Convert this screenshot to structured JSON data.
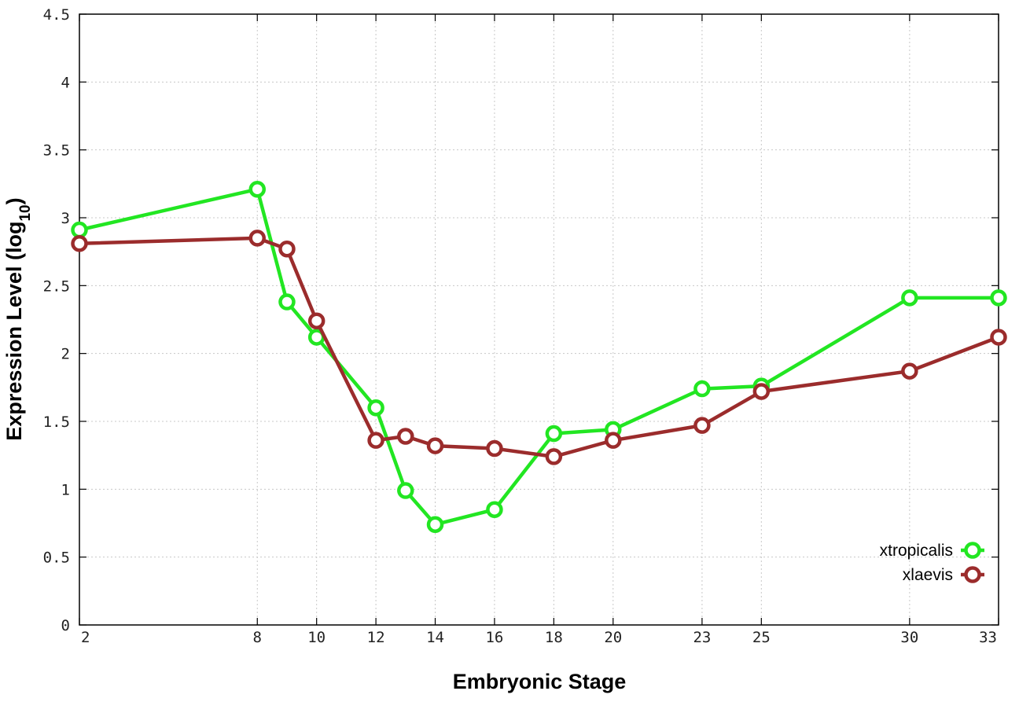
{
  "chart_data": {
    "type": "line",
    "xlabel": "Embryonic Stage",
    "ylabel_main": "Expression Level (log",
    "ylabel_sub": "10",
    "ylabel_close": ")",
    "x": [
      2,
      8,
      9,
      10,
      12,
      13,
      14,
      16,
      18,
      20,
      23,
      25,
      30,
      33
    ],
    "x_ticks": [
      "2",
      "8",
      "10",
      "12",
      "14",
      "16",
      "18",
      "20",
      "23",
      "25",
      "30",
      "33"
    ],
    "y_ticks": [
      "0",
      "0.5",
      "1",
      "1.5",
      "2",
      "2.5",
      "3",
      "3.5",
      "4",
      "4.5"
    ],
    "ylim": [
      0,
      4.5
    ],
    "grid": true,
    "legend_position": "bottom-right",
    "series": [
      {
        "name": "xtropicalis",
        "color": "#22e622",
        "values": [
          2.91,
          3.21,
          2.38,
          2.12,
          1.6,
          0.99,
          0.74,
          0.85,
          1.41,
          1.44,
          1.74,
          1.76,
          2.41,
          2.41
        ]
      },
      {
        "name": "xlaevis",
        "color": "#9b2c2c",
        "values": [
          2.81,
          2.85,
          2.77,
          2.24,
          1.36,
          1.39,
          1.32,
          1.3,
          1.24,
          1.36,
          1.47,
          1.72,
          1.87,
          2.12
        ]
      }
    ]
  }
}
